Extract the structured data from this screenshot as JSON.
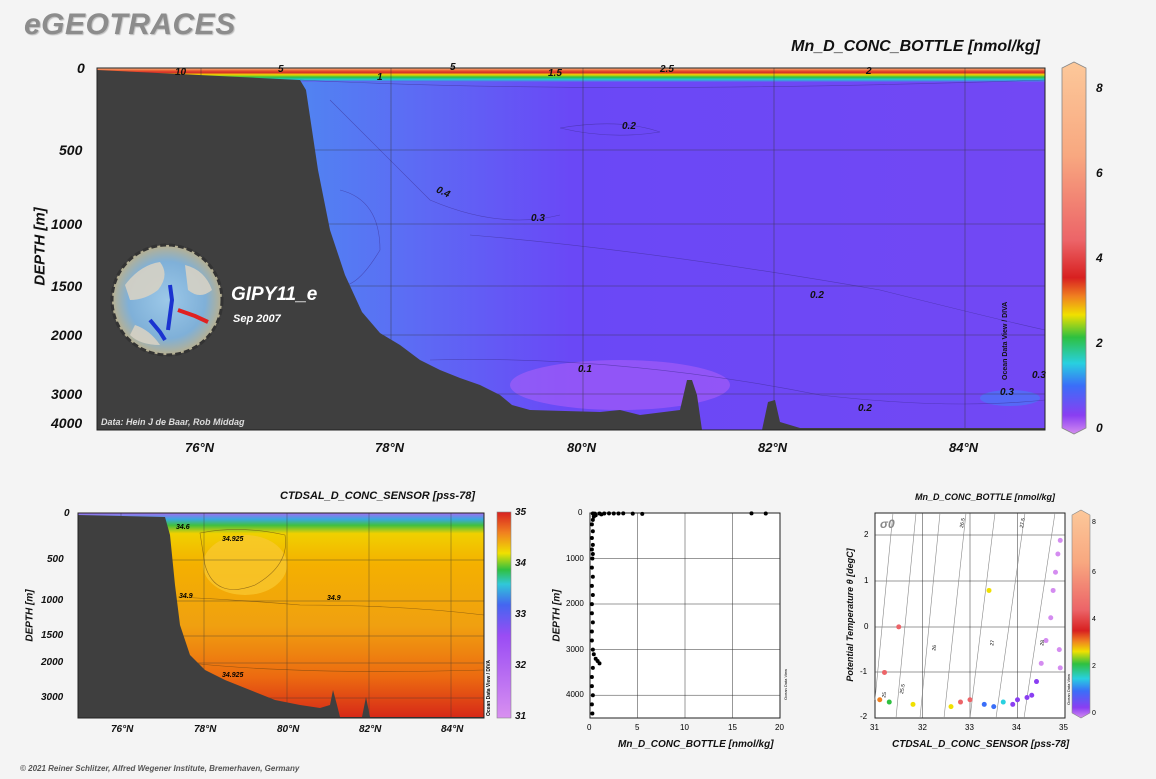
{
  "brand": "eGEOTRACES",
  "copyright": "© 2021 Reiner Schlitzer, Alfred Wegener Institute, Bremerhaven, Germany",
  "main_section": {
    "title": "Mn_D_CONC_BOTTLE [nmol/kg]",
    "ylabel": "DEPTH [m]",
    "cruise": "GIPY11_e",
    "date": "Sep 2007",
    "credit": "Data: Hein J de Baar, Rob Middag",
    "odv_label": "Ocean Data View / DIVA",
    "yticks": [
      "0",
      "500",
      "1000",
      "1500",
      "2000",
      "3000",
      "4000"
    ],
    "xticks": [
      "76°N",
      "78°N",
      "80°N",
      "82°N",
      "84°N"
    ],
    "colorbar_ticks": [
      "8",
      "6",
      "4",
      "2",
      "0"
    ],
    "contour_labels": [
      "10",
      "5",
      "5",
      "1",
      "1.5",
      "2.5",
      "2",
      "0.2",
      "0.4",
      "0.3",
      "0.2",
      "0.1",
      "0.3",
      "0.2",
      "0.3"
    ]
  },
  "salinity_section": {
    "title": "CTDSAL_D_CONC_SENSOR [pss-78]",
    "ylabel": "DEPTH [m]",
    "odv_label": "Ocean Data View / DIVA",
    "yticks": [
      "0",
      "500",
      "1000",
      "1500",
      "2000",
      "3000"
    ],
    "xticks": [
      "76°N",
      "78°N",
      "80°N",
      "82°N",
      "84°N"
    ],
    "colorbar_ticks": [
      "35",
      "34",
      "33",
      "32",
      "31"
    ],
    "contour_labels": [
      "34.6",
      "34.925",
      "34.9",
      "34.9",
      "34.925"
    ]
  },
  "profile_plot": {
    "xlabel": "Mn_D_CONC_BOTTLE [nmol/kg]",
    "ylabel": "DEPTH [m]",
    "odv_label": "Ocean Data View",
    "xticks": [
      "0",
      "5",
      "10",
      "15",
      "20"
    ],
    "yticks": [
      "0",
      "1000",
      "2000",
      "3000",
      "4000"
    ]
  },
  "ts_plot": {
    "title": "Mn_D_CONC_BOTTLE [nmol/kg]",
    "xlabel": "CTDSAL_D_CONC_SENSOR [pss-78]",
    "ylabel": "Potential Temperature θ [degC]",
    "sigma_label": "σ0",
    "odv_label": "Ocean Data View",
    "xticks": [
      "31",
      "32",
      "33",
      "34",
      "35"
    ],
    "yticks": [
      "2",
      "1",
      "0",
      "-1",
      "-2"
    ],
    "colorbar_ticks": [
      "8",
      "6",
      "4",
      "2",
      "0"
    ],
    "isopycnal_labels": [
      "25",
      "25.5",
      "26",
      "26.5",
      "27",
      "27.5",
      "28"
    ]
  },
  "chart_data": [
    {
      "type": "heatmap",
      "title": "Mn_D_CONC_BOTTLE [nmol/kg]",
      "ylabel": "DEPTH [m]",
      "xlim": [
        75,
        84.8
      ],
      "ylim": [
        4100,
        0
      ],
      "color_range": [
        0,
        8.5
      ],
      "x_ticks": [
        "76°N",
        "78°N",
        "80°N",
        "82°N",
        "84°N"
      ],
      "y_ticks": [
        0,
        500,
        1000,
        1500,
        2000,
        3000,
        4000
      ],
      "bathymetry": [
        [
          75,
          20
        ],
        [
          77,
          40
        ],
        [
          77.1,
          200
        ],
        [
          77.3,
          800
        ],
        [
          77.6,
          1500
        ],
        [
          78,
          2000
        ],
        [
          78.5,
          2300
        ],
        [
          79,
          2700
        ],
        [
          79.5,
          3800
        ],
        [
          80.5,
          3850
        ],
        [
          81,
          3800
        ],
        [
          81.1,
          2900
        ],
        [
          81.3,
          4000
        ],
        [
          81.9,
          4100
        ],
        [
          82,
          3400
        ],
        [
          82.2,
          4050
        ],
        [
          84.8,
          4080
        ]
      ],
      "contours": [
        {
          "label": "10",
          "lat": 76.2,
          "depth": 15
        },
        {
          "label": "5",
          "lat": 76.8,
          "depth": 10
        },
        {
          "label": "5",
          "lat": 78.7,
          "depth": 5
        },
        {
          "label": "1",
          "lat": 77.8,
          "depth": 30
        },
        {
          "label": "1.5",
          "lat": 79.7,
          "depth": 25
        },
        {
          "label": "2.5",
          "lat": 80.8,
          "depth": 10
        },
        {
          "label": "2",
          "lat": 82.0,
          "depth": 15
        },
        {
          "label": "0.2",
          "lat": 80.5,
          "depth": 390
        },
        {
          "label": "0.4",
          "lat": 78.6,
          "depth": 830
        },
        {
          "label": "0.3",
          "lat": 79.6,
          "depth": 980
        },
        {
          "label": "0.2",
          "lat": 82.5,
          "depth": 1670
        },
        {
          "label": "0.1",
          "lat": 80.0,
          "depth": 2680
        },
        {
          "label": "0.3",
          "lat": 84.5,
          "depth": 3000
        },
        {
          "label": "0.2",
          "lat": 83.0,
          "depth": 3880
        },
        {
          "label": "0.3",
          "lat": 84.8,
          "depth": 2800
        }
      ]
    },
    {
      "type": "heatmap",
      "title": "CTDSAL_D_CONC_SENSOR [pss-78]",
      "ylabel": "DEPTH [m]",
      "xlim": [
        75,
        85
      ],
      "ylim": [
        3600,
        0
      ],
      "color_range": [
        31,
        35
      ],
      "x_ticks": [
        "76°N",
        "78°N",
        "80°N",
        "82°N",
        "84°N"
      ],
      "y_ticks": [
        0,
        500,
        1000,
        1500,
        2000,
        3000
      ],
      "contours": [
        {
          "label": "34.6",
          "lat": 77.5,
          "depth": 110
        },
        {
          "label": "34.925",
          "lat": 78.7,
          "depth": 200
        },
        {
          "label": "34.9",
          "lat": 77.4,
          "depth": 950
        },
        {
          "label": "34.9",
          "lat": 81.2,
          "depth": 960
        },
        {
          "label": "34.925",
          "lat": 78.7,
          "depth": 2450
        }
      ]
    },
    {
      "type": "scatter",
      "xlabel": "Mn_D_CONC_BOTTLE [nmol/kg]",
      "ylabel": "DEPTH [m]",
      "xlim": [
        0,
        20
      ],
      "ylim": [
        4500,
        0
      ],
      "points": [
        [
          0.3,
          10
        ],
        [
          0.5,
          15
        ],
        [
          1.0,
          10
        ],
        [
          1.5,
          12
        ],
        [
          2.0,
          8
        ],
        [
          2.5,
          10
        ],
        [
          3.0,
          12
        ],
        [
          3.5,
          8
        ],
        [
          4.5,
          15
        ],
        [
          5.5,
          20
        ],
        [
          17.0,
          8
        ],
        [
          18.5,
          10
        ],
        [
          1.2,
          30
        ],
        [
          0.6,
          50
        ],
        [
          0.4,
          80
        ],
        [
          0.3,
          150
        ],
        [
          0.2,
          250
        ],
        [
          0.3,
          400
        ],
        [
          0.2,
          550
        ],
        [
          0.3,
          700
        ],
        [
          0.2,
          800
        ],
        [
          0.3,
          900
        ],
        [
          0.25,
          1000
        ],
        [
          0.2,
          1200
        ],
        [
          0.3,
          1400
        ],
        [
          0.2,
          1600
        ],
        [
          0.3,
          1800
        ],
        [
          0.2,
          2000
        ],
        [
          0.2,
          2200
        ],
        [
          0.3,
          2400
        ],
        [
          0.2,
          2600
        ],
        [
          0.2,
          2800
        ],
        [
          0.3,
          3000
        ],
        [
          0.4,
          3100
        ],
        [
          0.6,
          3200
        ],
        [
          0.8,
          3250
        ],
        [
          1.0,
          3300
        ],
        [
          0.3,
          3400
        ],
        [
          0.2,
          3600
        ],
        [
          0.2,
          3800
        ],
        [
          0.3,
          4000
        ],
        [
          0.2,
          4200
        ],
        [
          0.25,
          4400
        ]
      ]
    },
    {
      "type": "scatter",
      "title": "Mn_D_CONC_BOTTLE [nmol/kg]",
      "xlabel": "CTDSAL_D_CONC_SENSOR [pss-78]",
      "ylabel": "Potential Temperature θ [degC]",
      "xlim": [
        31,
        35
      ],
      "ylim": [
        -2,
        2.5
      ],
      "color_range": [
        0,
        8.5
      ],
      "points": [
        [
          31.1,
          -1.6,
          3.5
        ],
        [
          31.3,
          -1.65,
          2.5
        ],
        [
          31.8,
          -1.7,
          3.0
        ],
        [
          31.5,
          0.0,
          5.5
        ],
        [
          31.2,
          -1.0,
          6.0
        ],
        [
          32.6,
          -1.75,
          2.8
        ],
        [
          32.8,
          -1.65,
          4.5
        ],
        [
          33.0,
          -1.6,
          5.0
        ],
        [
          33.3,
          -1.7,
          1.2
        ],
        [
          33.5,
          -1.75,
          1.5
        ],
        [
          33.7,
          -1.65,
          1.8
        ],
        [
          33.9,
          -1.7,
          1.0
        ],
        [
          34.0,
          -1.6,
          0.9
        ],
        [
          34.2,
          -1.55,
          0.6
        ],
        [
          34.3,
          -1.5,
          0.5
        ],
        [
          34.4,
          -1.2,
          0.5
        ],
        [
          34.5,
          -0.8,
          0.4
        ],
        [
          34.6,
          -0.3,
          0.3
        ],
        [
          34.7,
          0.2,
          0.3
        ],
        [
          34.75,
          0.8,
          0.25
        ],
        [
          34.8,
          1.2,
          0.2
        ],
        [
          34.85,
          1.6,
          0.2
        ],
        [
          34.9,
          1.9,
          0.2
        ],
        [
          34.88,
          -0.5,
          0.3
        ],
        [
          34.9,
          -0.9,
          0.3
        ],
        [
          33.4,
          0.8,
          3.0
        ]
      ]
    }
  ]
}
